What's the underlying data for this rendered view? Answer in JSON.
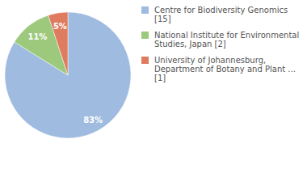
{
  "chart_data": {
    "type": "pie",
    "categories": [
      "Centre for Biodiversity Genomics [15]",
      "National Institute for Environmental Studies, Japan [2]",
      "University of Johannesburg, Department of Botany and Plant ... [1]"
    ],
    "values": [
      83,
      11,
      5
    ],
    "value_labels": [
      "83%",
      "11%",
      "5%"
    ],
    "colors": [
      "#9fbbe0",
      "#9cc97c",
      "#df7b5e"
    ],
    "data_labels": true,
    "legend": "top-right"
  }
}
